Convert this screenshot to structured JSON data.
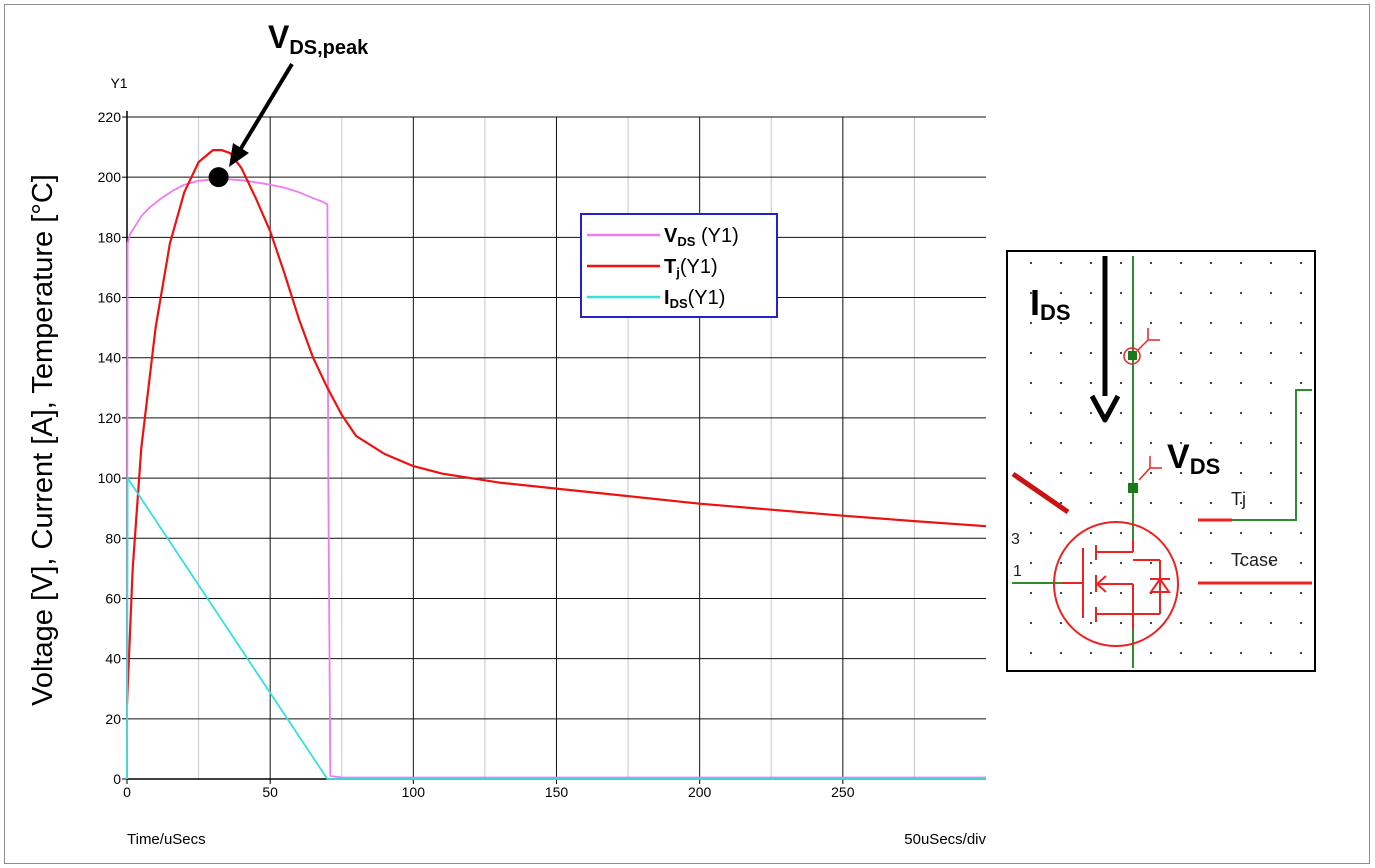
{
  "chart_data": {
    "type": "line",
    "title": "",
    "ylabel": "Voltage [V], Current [A], Temperature [°C]",
    "y_axis_name": "Y1",
    "xlabel": "Time/uSecs",
    "x_scale_note": "50uSecs/div",
    "xlim": [
      0,
      300
    ],
    "ylim": [
      0,
      220
    ],
    "xticks": [
      0,
      50,
      100,
      150,
      200,
      250
    ],
    "yticks": [
      0,
      20,
      40,
      60,
      80,
      100,
      120,
      140,
      160,
      180,
      200,
      220
    ],
    "grid": true,
    "legend_position": "center-right",
    "annotation": {
      "base": "V",
      "sub": "DS,peak",
      "x": 32,
      "y": 200
    },
    "series": [
      {
        "legend_base": "V",
        "legend_sub": "DS",
        "legend_suffix": " (Y1)",
        "color": "#f07af0",
        "x": [
          0,
          0.2,
          1,
          3,
          5,
          8,
          12,
          16,
          20,
          25,
          30,
          35,
          40,
          45,
          50,
          55,
          60,
          65,
          68,
          70,
          70.3,
          71,
          75,
          100,
          200,
          300
        ],
        "y": [
          0,
          178,
          181,
          184,
          187,
          190,
          193,
          195.5,
          197.5,
          198.8,
          199.3,
          199.3,
          199,
          198.3,
          197.5,
          196.5,
          195,
          193,
          192,
          191,
          100,
          1,
          0.5,
          0.5,
          0.5,
          0.5
        ]
      },
      {
        "legend_base": "T",
        "legend_sub": "j",
        "legend_suffix": "(Y1)",
        "color": "#ee1111",
        "x": [
          0,
          2,
          5,
          10,
          15,
          20,
          25,
          30,
          33,
          36,
          40,
          45,
          50,
          55,
          60,
          65,
          70,
          75,
          80,
          90,
          100,
          110,
          120,
          130,
          150,
          175,
          200,
          225,
          250,
          275,
          300
        ],
        "y": [
          25,
          70,
          110,
          150,
          178,
          195,
          205,
          209,
          209,
          208,
          203,
          193,
          182,
          168,
          153,
          140,
          130,
          121,
          114,
          108,
          104,
          101.5,
          100,
          98.5,
          96.5,
          94,
          91.5,
          89.5,
          87.5,
          85.7,
          84
        ]
      },
      {
        "legend_base": "I",
        "legend_sub": "DS",
        "legend_suffix": "(Y1)",
        "color": "#33e0e0",
        "x": [
          0,
          0.2,
          70,
          75,
          150,
          300
        ],
        "y": [
          0,
          100,
          0,
          0,
          0,
          0
        ]
      }
    ]
  },
  "inset": {
    "current_label_base": "I",
    "current_label_sub": "DS",
    "voltage_label_base": "V",
    "voltage_label_sub": "DS",
    "tj_label": "Tj",
    "tcase_label": "Tcase",
    "pin_gate": "1",
    "pin_three": "3"
  }
}
